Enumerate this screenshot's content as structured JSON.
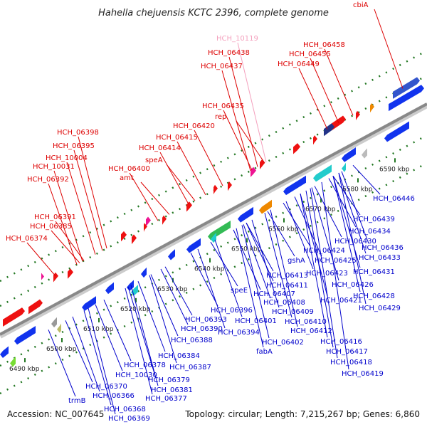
{
  "title": "Hahella chejuensis KCTC 2396, complete genome",
  "footer": {
    "accession": "Accession: NC_007645",
    "info": "Topology: circular; Length: 7,215,267 bp; Genes: 6,860"
  },
  "colors": {
    "top_label": "#dd0000",
    "top_label_pale": "#f4a0bd",
    "bottom_label": "#0000cc",
    "backbone": "#888888",
    "forward_gene": "#ee1111",
    "reverse_gene": "#1133ee",
    "tick": "#227722"
  },
  "ticks": [
    "6490 kbp",
    "6500 kbp",
    "6510 kbp",
    "6520 kbp",
    "6530 kbp",
    "6540 kbp",
    "6550 kbp",
    "6560 kbp",
    "6570 kbp",
    "6580 kbp",
    "6590 kbp"
  ],
  "top_labels": [
    "cbiA",
    "HCH_10119",
    "HCH_06458",
    "HCH_06438",
    "HCH_06455",
    "HCH_06437",
    "HCH_06449",
    "HCH_06435",
    "rep",
    "HCH_06420",
    "HCH_06415",
    "HCH_06398",
    "HCH_06414",
    "HCH_06395",
    "speA",
    "HCH_10004",
    "HCH_06400",
    "HCH_10031",
    "amt",
    "HCH_06392",
    "HCH_06391",
    "HCH_06385",
    "HCH_06374"
  ],
  "bottom_labels": [
    "HCH_06446",
    "HCH_06439",
    "HCH_06434",
    "HCH_06430",
    "HCH_06436",
    "gshA",
    "HCH_06424",
    "HCH_06433",
    "HCH_06425",
    "HCH_06431",
    "HCH_06423",
    "HCH_06413",
    "HCH_06426",
    "HCH_06411",
    "HCH_06428",
    "speE",
    "HCH_06407",
    "HCH_06421",
    "HCH_06429",
    "HCH_06408",
    "HCH_06396",
    "HCH_06409",
    "HCH_06393",
    "HCH_06401",
    "HCH_06410",
    "HCH_06390",
    "HCH_06394",
    "HCH_06412",
    "HCH_06388",
    "HCH_06402",
    "HCH_06416",
    "fabA",
    "HCH_06417",
    "HCH_06384",
    "HCH_06418",
    "HCH_06378",
    "HCH_06387",
    "HCH_06419",
    "HCH_10030",
    "HCH_06379",
    "HCH_06370",
    "HCH_06381",
    "HCH_06366",
    "HCH_06377",
    "trmB",
    "HCH_06368",
    "HCH_06369"
  ]
}
